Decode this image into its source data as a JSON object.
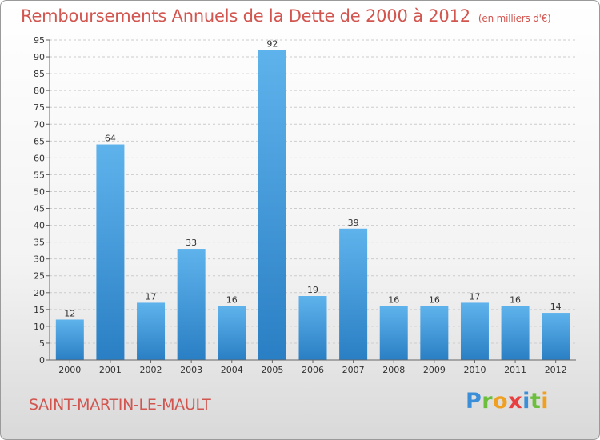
{
  "title": "Remboursements Annuels de la Dette de 2000 à 2012",
  "subtitle": "(en milliers d'€)",
  "commune": "SAINT-MARTIN-LE-MAULT",
  "logo": {
    "letters": [
      "P",
      "r",
      "o",
      "x",
      "i",
      "t",
      "i"
    ],
    "colors": [
      "#3a8fd8",
      "#6cbf3c",
      "#f0a020",
      "#e84040",
      "#3a8fd8",
      "#6cbf3c",
      "#f0a020"
    ]
  },
  "colors": {
    "bar_top": "#5fb3ec",
    "bar_bottom": "#2a7fc4",
    "title": "#d2554f",
    "grid": "#cccccc"
  },
  "chart_data": {
    "type": "bar",
    "title": "Remboursements Annuels de la Dette de 2000 à 2012",
    "categories": [
      "2000",
      "2001",
      "2002",
      "2003",
      "2004",
      "2005",
      "2006",
      "2007",
      "2008",
      "2009",
      "2010",
      "2011",
      "2012"
    ],
    "values": [
      12,
      64,
      17,
      33,
      16,
      92,
      19,
      39,
      16,
      16,
      17,
      16,
      14
    ],
    "ylim": [
      0,
      95
    ],
    "yticks": [
      0,
      5,
      10,
      15,
      20,
      25,
      30,
      35,
      40,
      45,
      50,
      55,
      60,
      65,
      70,
      75,
      80,
      85,
      90,
      95
    ],
    "grid": true
  }
}
